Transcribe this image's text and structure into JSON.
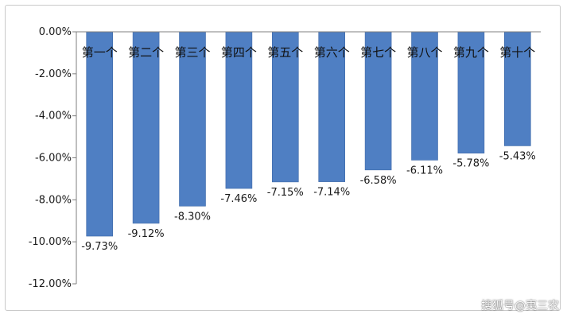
{
  "chart_data": {
    "type": "bar",
    "categories": [
      "第一个",
      "第二个",
      "第三个",
      "第四个",
      "第五个",
      "第六个",
      "第七个",
      "第八个",
      "第九个",
      "第十个"
    ],
    "values": [
      -9.73,
      -9.12,
      -8.3,
      -7.46,
      -7.15,
      -7.14,
      -6.58,
      -6.11,
      -5.78,
      -5.43
    ],
    "data_labels": [
      "-9.73%",
      "-9.12%",
      "-8.30%",
      "-7.46%",
      "-7.15%",
      "-7.14%",
      "-6.58%",
      "-6.11%",
      "-5.78%",
      "-5.43%"
    ],
    "yticks": [
      0,
      -2,
      -4,
      -6,
      -8,
      -10,
      -12
    ],
    "ytick_labels": [
      "0.00%",
      "-2.00%",
      "-4.00%",
      "-6.00%",
      "-8.00%",
      "-10.00%",
      "-12.00%"
    ],
    "ylim": [
      -12,
      0
    ],
    "grid": false,
    "legend": false,
    "colors": {
      "bar": "#4f7fc3",
      "bar_edge": "#3f6aa8",
      "axis": "#7f7f7f",
      "text": "#1a1a1a"
    }
  },
  "watermark": "搜狐号@夷三农"
}
